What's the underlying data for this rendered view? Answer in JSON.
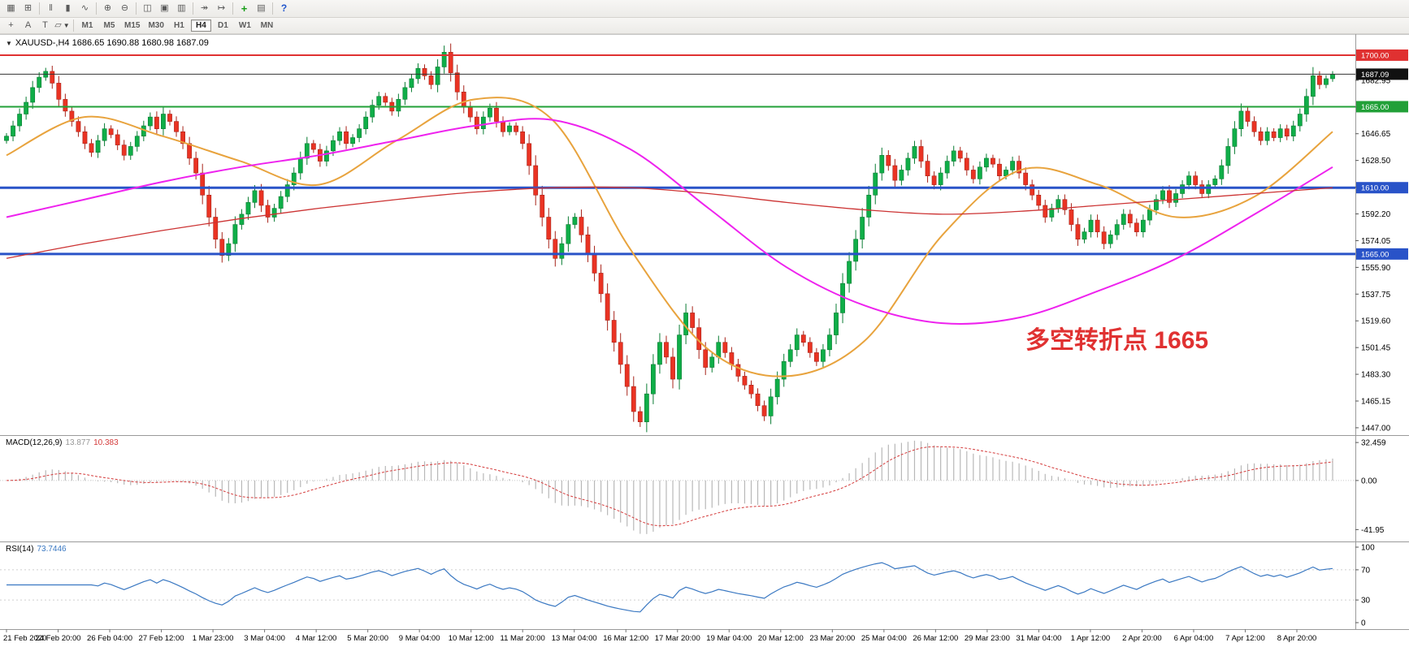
{
  "ui": {
    "caret_down": "▼"
  },
  "toolbar": {
    "row1": [
      {
        "name": "charts-grid-icon",
        "glyph": "▦"
      },
      {
        "name": "new-chart-icon",
        "glyph": "⊞"
      },
      {
        "name": "ohlc-bars-type-icon",
        "glyph": "‖"
      },
      {
        "name": "candlestick-type-icon",
        "glyph": "▮"
      },
      {
        "name": "line-chart-type-icon",
        "glyph": "∿"
      },
      {
        "name": "zoom-in-icon",
        "glyph": "⊕"
      },
      {
        "name": "zoom-out-icon",
        "glyph": "⊖"
      },
      {
        "name": "tile-windows-icon",
        "glyph": "◫"
      },
      {
        "name": "cascade-windows-icon",
        "glyph": "▣"
      },
      {
        "name": "arrange-windows-icon",
        "glyph": "▥"
      },
      {
        "name": "auto-scroll-icon",
        "glyph": "↠"
      },
      {
        "name": "chart-shift-icon",
        "glyph": "↦"
      },
      {
        "name": "indicators-add-icon",
        "glyph": "+"
      },
      {
        "name": "templates-icon",
        "glyph": "▤"
      },
      {
        "name": "help-icon",
        "glyph": "?"
      }
    ],
    "row2_tools": [
      {
        "name": "crosshair-icon",
        "glyph": "+"
      },
      {
        "name": "text-label-icon",
        "glyph": "A"
      },
      {
        "name": "text-tool-icon",
        "glyph": "T"
      },
      {
        "name": "shapes-tool-icon",
        "glyph": "▱"
      }
    ],
    "timeframes": [
      {
        "label": "M1",
        "active": false
      },
      {
        "label": "M5",
        "active": false
      },
      {
        "label": "M15",
        "active": false
      },
      {
        "label": "M30",
        "active": false
      },
      {
        "label": "H1",
        "active": false
      },
      {
        "label": "H4",
        "active": true
      },
      {
        "label": "D1",
        "active": false
      },
      {
        "label": "W1",
        "active": false
      },
      {
        "label": "MN",
        "active": false
      }
    ]
  },
  "chart_data": {
    "type": "candlestick",
    "symbol_title": "XAUUSD-,H4 1686.65 1690.88 1680.98 1687.09",
    "symbol": "XAUUSD",
    "timeframe": "H4",
    "last_ohlc": {
      "open": "1686.65",
      "high": "1690.88",
      "low": "1680.98",
      "close": "1687.09"
    },
    "open_first": 1642,
    "closes": [
      1645,
      1652,
      1660,
      1668,
      1678,
      1685,
      1689,
      1681,
      1670,
      1662,
      1655,
      1648,
      1640,
      1634,
      1642,
      1650,
      1646,
      1639,
      1632,
      1638,
      1645,
      1652,
      1658,
      1650,
      1660,
      1655,
      1648,
      1640,
      1630,
      1620,
      1605,
      1590,
      1575,
      1564,
      1572,
      1585,
      1592,
      1600,
      1608,
      1598,
      1590,
      1596,
      1604,
      1612,
      1620,
      1630,
      1640,
      1636,
      1628,
      1635,
      1642,
      1648,
      1640,
      1644,
      1650,
      1658,
      1666,
      1672,
      1668,
      1662,
      1670,
      1678,
      1684,
      1691,
      1686,
      1680,
      1692,
      1702,
      1688,
      1675,
      1665,
      1658,
      1650,
      1658,
      1664,
      1655,
      1648,
      1652,
      1648,
      1640,
      1625,
      1605,
      1590,
      1575,
      1562,
      1572,
      1585,
      1590,
      1578,
      1565,
      1552,
      1538,
      1520,
      1505,
      1490,
      1475,
      1458,
      1451,
      1470,
      1490,
      1505,
      1495,
      1480,
      1510,
      1525,
      1515,
      1500,
      1488,
      1495,
      1505,
      1498,
      1490,
      1482,
      1476,
      1470,
      1462,
      1455,
      1468,
      1480,
      1492,
      1500,
      1510,
      1505,
      1498,
      1492,
      1500,
      1510,
      1525,
      1545,
      1560,
      1575,
      1590,
      1605,
      1620,
      1632,
      1625,
      1615,
      1622,
      1630,
      1638,
      1628,
      1618,
      1612,
      1620,
      1628,
      1635,
      1630,
      1622,
      1616,
      1624,
      1630,
      1626,
      1618,
      1622,
      1628,
      1620,
      1612,
      1605,
      1598,
      1590,
      1596,
      1602,
      1595,
      1585,
      1575,
      1580,
      1588,
      1580,
      1572,
      1578,
      1585,
      1592,
      1586,
      1580,
      1588,
      1595,
      1602,
      1608,
      1600,
      1606,
      1612,
      1618,
      1612,
      1606,
      1612,
      1616,
      1625,
      1638,
      1650,
      1662,
      1655,
      1648,
      1642,
      1648,
      1644,
      1650,
      1645,
      1652,
      1660,
      1672,
      1686,
      1680,
      1684,
      1687.09
    ],
    "colors": {
      "up": "#0fae48",
      "down": "#ea3323",
      "up_border": "#0a7c33",
      "down_border": "#a8241a"
    },
    "hlines": [
      {
        "value": 1700,
        "color": "#e03131",
        "width": 2
      },
      {
        "value": 1687.09,
        "color": "#333333",
        "width": 1
      },
      {
        "value": 1665,
        "color": "#22a038",
        "width": 2
      },
      {
        "value": 1610,
        "color": "#2953c8",
        "width": 3
      },
      {
        "value": 1565,
        "color": "#2953c8",
        "width": 3
      }
    ],
    "price_axis": {
      "ticks": [
        "1682.95",
        "1664.80",
        "1646.65",
        "1628.50",
        "1610.35",
        "1592.20",
        "1574.05",
        "1555.90",
        "1537.75",
        "1519.60",
        "1501.45",
        "1483.30",
        "1465.15",
        "1447.00"
      ],
      "badges": [
        {
          "text": "1700.00",
          "value": 1700,
          "bg": "#e03131"
        },
        {
          "text": "1687.09",
          "value": 1687.09,
          "bg": "#111111"
        },
        {
          "text": "1665.00",
          "value": 1665,
          "bg": "#22a038"
        },
        {
          "text": "1610.00",
          "value": 1610,
          "bg": "#2953c8"
        },
        {
          "text": "1565.00",
          "value": 1565,
          "bg": "#2953c8"
        }
      ]
    },
    "mas": [
      {
        "name": "ma-orange",
        "color": "#e8a33d",
        "width": 2,
        "points": [
          1632,
          1658,
          1645,
          1628,
          1612,
          1642,
          1670,
          1656,
          1568,
          1500,
          1482,
          1506,
          1578,
          1622,
          1612,
          1590,
          1604,
          1648
        ]
      },
      {
        "name": "ma-magenta",
        "color": "#ee22ee",
        "width": 2,
        "points": [
          1590,
          1602,
          1614,
          1624,
          1632,
          1642,
          1652,
          1656,
          1636,
          1596,
          1556,
          1530,
          1518,
          1522,
          1540,
          1562,
          1592,
          1624
        ]
      },
      {
        "name": "ma-red",
        "color": "#cc3333",
        "width": 1.3,
        "points": [
          1562,
          1572,
          1581,
          1589,
          1596,
          1602,
          1607,
          1610,
          1610,
          1606,
          1600,
          1595,
          1592,
          1594,
          1598,
          1602,
          1606,
          1610
        ]
      }
    ],
    "macd": {
      "label": "MACD(12,26,9)",
      "value_main": "13.877",
      "value_signal": "10.383",
      "axis": [
        "32.459",
        "0.00",
        "-41.95"
      ],
      "histogram_color": "#b8b8b8",
      "signal_color": "#d43a3a"
    },
    "rsi": {
      "label": "RSI(14)",
      "value": "73.7446",
      "axis": [
        "100",
        "70",
        "30",
        "0"
      ],
      "levels": [
        70,
        30
      ],
      "line_color": "#3a78c2"
    },
    "x_labels": [
      "21 Feb 2020",
      "24 Feb 20:00",
      "26 Feb 04:00",
      "27 Feb 12:00",
      "1 Mar 23:00",
      "3 Mar 04:00",
      "4 Mar 12:00",
      "5 Mar 20:00",
      "9 Mar 04:00",
      "10 Mar 12:00",
      "11 Mar 20:00",
      "13 Mar 04:00",
      "16 Mar 12:00",
      "17 Mar 20:00",
      "19 Mar 04:00",
      "20 Mar 12:00",
      "23 Mar 20:00",
      "25 Mar 04:00",
      "26 Mar 12:00",
      "29 Mar 23:00",
      "31 Mar 04:00",
      "1 Apr 12:00",
      "2 Apr 20:00",
      "6 Apr 04:00",
      "7 Apr 12:00",
      "8 Apr 20:00"
    ],
    "annotation": {
      "text": "多空转折点 1665",
      "color": "#e03131"
    }
  }
}
